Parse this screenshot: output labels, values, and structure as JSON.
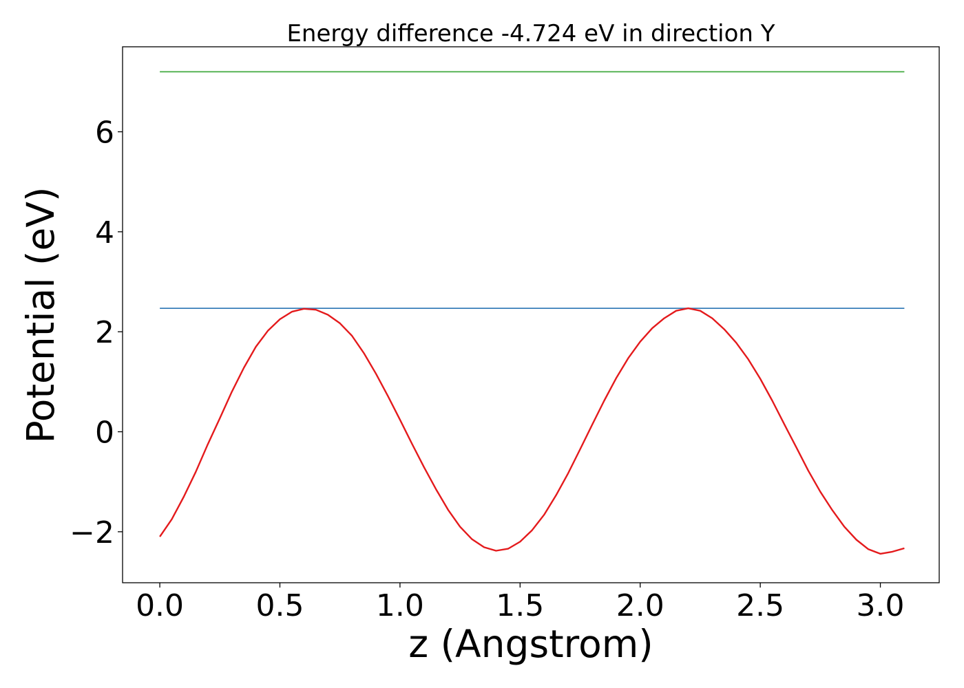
{
  "chart_data": {
    "type": "line",
    "title": "Energy difference -4.724 eV in direction Y",
    "xlabel": "z (Angstrom)",
    "ylabel": "Potential (eV)",
    "xlim": [
      -0.155,
      3.245
    ],
    "ylim": [
      -3.02,
      7.7
    ],
    "x_ticks": [
      0.0,
      0.5,
      1.0,
      1.5,
      2.0,
      2.5,
      3.0
    ],
    "x_tick_labels": [
      "0.0",
      "0.5",
      "1.0",
      "1.5",
      "2.0",
      "2.5",
      "3.0"
    ],
    "y_ticks": [
      -2,
      0,
      2,
      4,
      6
    ],
    "y_tick_labels": [
      "−2",
      "0",
      "2",
      "4",
      "6"
    ],
    "grid": false,
    "legend": "none",
    "colors": {
      "potential": "#e41a1c",
      "max_level": "#377eb8",
      "upper_level": "#4daf4a"
    },
    "series": [
      {
        "key": "upper_level",
        "x": [
          0.0,
          3.1
        ],
        "y": [
          7.2,
          7.2
        ]
      },
      {
        "key": "max_level",
        "x": [
          0.0,
          3.1
        ],
        "y": [
          2.47,
          2.47
        ]
      },
      {
        "key": "potential",
        "x": [
          0.0,
          0.05,
          0.1,
          0.15,
          0.2,
          0.25,
          0.3,
          0.35,
          0.4,
          0.45,
          0.5,
          0.55,
          0.6,
          0.65,
          0.7,
          0.75,
          0.8,
          0.85,
          0.9,
          0.95,
          1.0,
          1.05,
          1.1,
          1.15,
          1.2,
          1.25,
          1.3,
          1.35,
          1.4,
          1.45,
          1.5,
          1.55,
          1.6,
          1.65,
          1.7,
          1.75,
          1.8,
          1.85,
          1.9,
          1.95,
          2.0,
          2.05,
          2.1,
          2.15,
          2.2,
          2.25,
          2.3,
          2.35,
          2.4,
          2.45,
          2.5,
          2.55,
          2.6,
          2.65,
          2.7,
          2.75,
          2.8,
          2.85,
          2.9,
          2.95,
          3.0,
          3.05,
          3.1
        ],
        "y": [
          -2.1,
          -1.75,
          -1.3,
          -0.8,
          -0.25,
          0.27,
          0.8,
          1.28,
          1.7,
          2.02,
          2.25,
          2.4,
          2.46,
          2.44,
          2.34,
          2.17,
          1.92,
          1.57,
          1.16,
          0.71,
          0.24,
          -0.24,
          -0.71,
          -1.15,
          -1.56,
          -1.9,
          -2.15,
          -2.31,
          -2.38,
          -2.34,
          -2.2,
          -1.97,
          -1.66,
          -1.27,
          -0.83,
          -0.35,
          0.14,
          0.62,
          1.07,
          1.47,
          1.8,
          2.07,
          2.27,
          2.42,
          2.47,
          2.42,
          2.27,
          2.05,
          1.78,
          1.45,
          1.06,
          0.62,
          0.15,
          -0.31,
          -0.78,
          -1.2,
          -1.57,
          -1.9,
          -2.16,
          -2.35,
          -2.44,
          -2.4,
          -2.33
        ]
      }
    ]
  }
}
